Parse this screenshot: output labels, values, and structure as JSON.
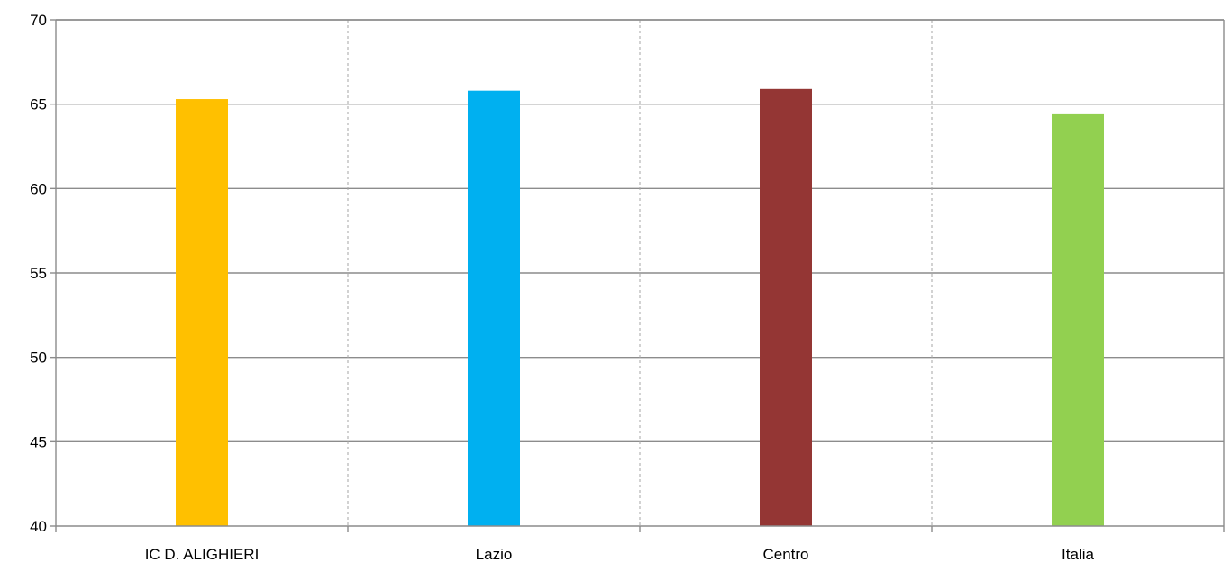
{
  "chart_data": {
    "type": "bar",
    "title": "",
    "xlabel": "",
    "ylabel": "",
    "categories": [
      "IC D. ALIGHIERI",
      "Lazio",
      "Centro",
      "Italia"
    ],
    "values": [
      65.3,
      65.8,
      65.9,
      64.4
    ],
    "colors": [
      "#FFC000",
      "#00B0F0",
      "#943634",
      "#92D050"
    ],
    "ylim": [
      40,
      70
    ],
    "yticks": [
      "40",
      "45",
      "50",
      "55",
      "60",
      "65",
      "70"
    ],
    "grid": "horizontal solid, vertical dashed",
    "legend": "none"
  }
}
